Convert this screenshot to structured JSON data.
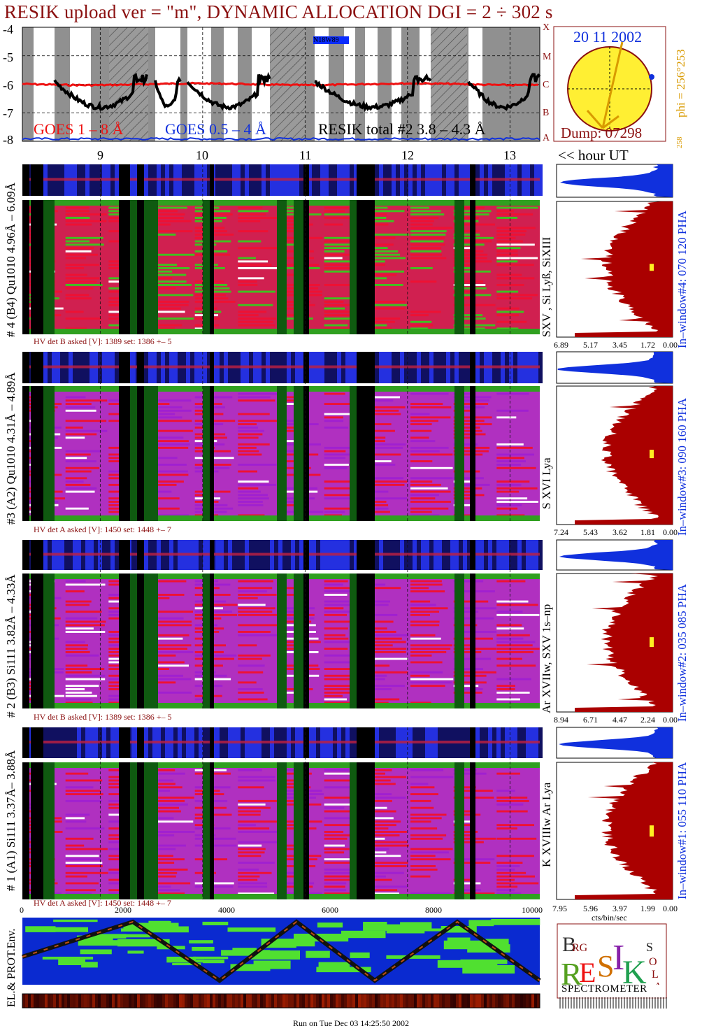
{
  "title": "RESIK upload ver = \"m\", DYNAMIC ALLOCATION  DGI =   2 ÷ 302 s",
  "goes": {
    "y_ticks": [
      "-4",
      "-5",
      "-6",
      "-7",
      "-8"
    ],
    "class_letters": [
      "X",
      "M",
      "C",
      "B",
      "A"
    ],
    "legend_goes18": "GOES 1 – 8 Å",
    "legend_goes054": "GOES 0.5 – 4 Å",
    "legend_resik": "RESIK total #2  3.8 – 4.3 Å",
    "marker": "N18W89",
    "colors": {
      "goes18": "#ee1111",
      "goes054": "#1030dd",
      "resik": "#000000"
    }
  },
  "sun": {
    "date": "20 11 2002",
    "dump": "Dump: 07298",
    "phi": "phi = 256°253",
    "small": "258"
  },
  "hour_axis": {
    "ticks": [
      "9",
      "10",
      "11",
      "12",
      "13"
    ],
    "label": "<< hour UT"
  },
  "panels": [
    {
      "id": "4",
      "left_label": "# 4 (B4) Qu1010 4.96Å – 6.09Å",
      "line_label": "SXV , Si Lyß, SiXIII",
      "hv": "HV det B asked [V]:  1389 set:  1386 +–    5",
      "pha": "In–window#4:  070 120 PHA",
      "ticks": [
        "6.89",
        "5.17",
        "3.45",
        "1.72",
        "0.00"
      ]
    },
    {
      "id": "3",
      "left_label": "#3 (A2) Qu1010  4.31Å – 4.89Å",
      "line_label": "S XVI Lya",
      "hv": "HV det A asked [V]:  1450 set:  1448 +–    7",
      "pha": "In–window#3:  090 160 PHA",
      "ticks": [
        "7.24",
        "5.43",
        "3.62",
        "1.81",
        "0.00"
      ]
    },
    {
      "id": "2",
      "left_label": "# 2 (B3) Si111  3.82Å – 4.33Å",
      "line_label": "Ar XVIIw,  SXV 1s–np",
      "hv": "HV det B asked [V]:  1389 set:  1386 +–    5",
      "pha": "In–window#2:  035 085 PHA",
      "ticks": [
        "8.94",
        "6.71",
        "4.47",
        "2.24",
        "0.00"
      ]
    },
    {
      "id": "1",
      "left_label": "# 1 (A1) Si111  3.37Å– 3.88Å",
      "line_label": "K XVIIIw  Ar Lya",
      "hv": "HV det A asked [V]:  1450 set:  1448 +–    7",
      "pha": "In–window#1:  055 110 PHA",
      "ticks": [
        "7.95",
        "5.96",
        "3.97",
        "1.99",
        "0.00"
      ]
    }
  ],
  "bottom_axis": {
    "ticks": [
      "0",
      "2000",
      "4000",
      "6000",
      "8000",
      "10000"
    ],
    "unit": "cts/bin/sec"
  },
  "env_label": "EL.& PROT.Env.",
  "logo": {
    "letters": "BRG  RESIK  SOLAR",
    "caption": "SPECTROMETER"
  },
  "run_on": "Run on Tue Dec 03 14:25:50 2002",
  "chart_data": {
    "type": "line",
    "series": [
      {
        "name": "GOES 1 – 8 Å",
        "x": [
          8.0,
          9.0,
          10.0,
          11.0,
          12.0,
          13.0,
          13.5
        ],
        "values": [
          -6.0,
          -6.0,
          -6.05,
          -6.1,
          -6.0,
          -6.05,
          -6.1
        ]
      },
      {
        "name": "RESIK total #2  3.8 – 4.3 Å",
        "x": [
          8.4,
          8.8,
          9.0,
          9.4,
          9.6,
          10.0,
          10.6,
          11.0,
          11.4,
          11.6,
          12.0,
          12.6,
          13.0,
          13.4
        ],
        "values": [
          -5.9,
          -6.5,
          -7.0,
          -6.2,
          -5.8,
          -6.1,
          -6.4,
          -6.8,
          -6.0,
          -5.9,
          -6.3,
          -6.9,
          -6.0,
          -6.1
        ]
      }
    ],
    "x_ticks": [
      "9",
      "10",
      "11",
      "12",
      "13"
    ],
    "ylim": [
      -8,
      -4
    ],
    "xlabel": "<< hour UT"
  }
}
